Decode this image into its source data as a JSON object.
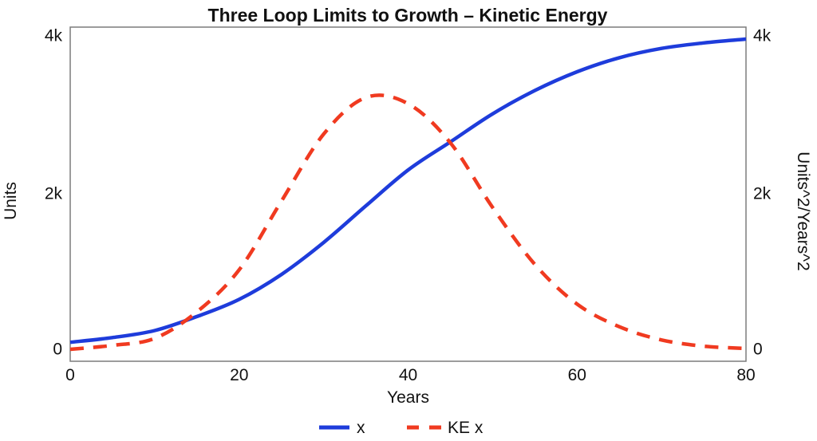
{
  "chart_data": {
    "type": "line",
    "title": "Three Loop Limits to Growth  – Kinetic Energy",
    "xlabel": "Years",
    "ylabel_left": "Units",
    "ylabel_right": "Units^2/Years^2",
    "xlim": [
      0,
      80
    ],
    "ylim_left": [
      0,
      4000
    ],
    "ylim_right": [
      0,
      4000
    ],
    "grid": false,
    "frame_color": "#7c7c7c",
    "x_ticks": [
      {
        "label": "0",
        "value": 0
      },
      {
        "label": "20",
        "value": 20
      },
      {
        "label": "40",
        "value": 40
      },
      {
        "label": "60",
        "value": 60
      },
      {
        "label": "80",
        "value": 80
      }
    ],
    "y_ticks_left": [
      {
        "label": "4k",
        "value": 4000
      },
      {
        "label": "2k",
        "value": 2000
      },
      {
        "label": "0",
        "value": 0
      }
    ],
    "y_ticks_right": [
      {
        "label": "4k",
        "value": 4000
      },
      {
        "label": "2k",
        "value": 2000
      },
      {
        "label": "0",
        "value": 0
      }
    ],
    "x": [
      0,
      5,
      10,
      15,
      20,
      25,
      30,
      35,
      40,
      45,
      50,
      55,
      60,
      65,
      70,
      75,
      80
    ],
    "series": [
      {
        "name": "x",
        "color": "#1e3cdb",
        "line_style": "solid",
        "axis": "left",
        "values": [
          90,
          150,
          240,
          420,
          640,
          960,
          1370,
          1840,
          2300,
          2660,
          3020,
          3320,
          3560,
          3740,
          3860,
          3930,
          3980
        ]
      },
      {
        "name": "KE x",
        "color": "#f03a20",
        "line_style": "dashed",
        "axis": "right",
        "values": [
          0,
          50,
          140,
          480,
          1020,
          1900,
          2760,
          3230,
          3150,
          2650,
          1820,
          1090,
          580,
          290,
          120,
          40,
          10
        ]
      }
    ],
    "legend": {
      "position": "bottom",
      "entries": [
        "x",
        "KE x"
      ]
    }
  }
}
